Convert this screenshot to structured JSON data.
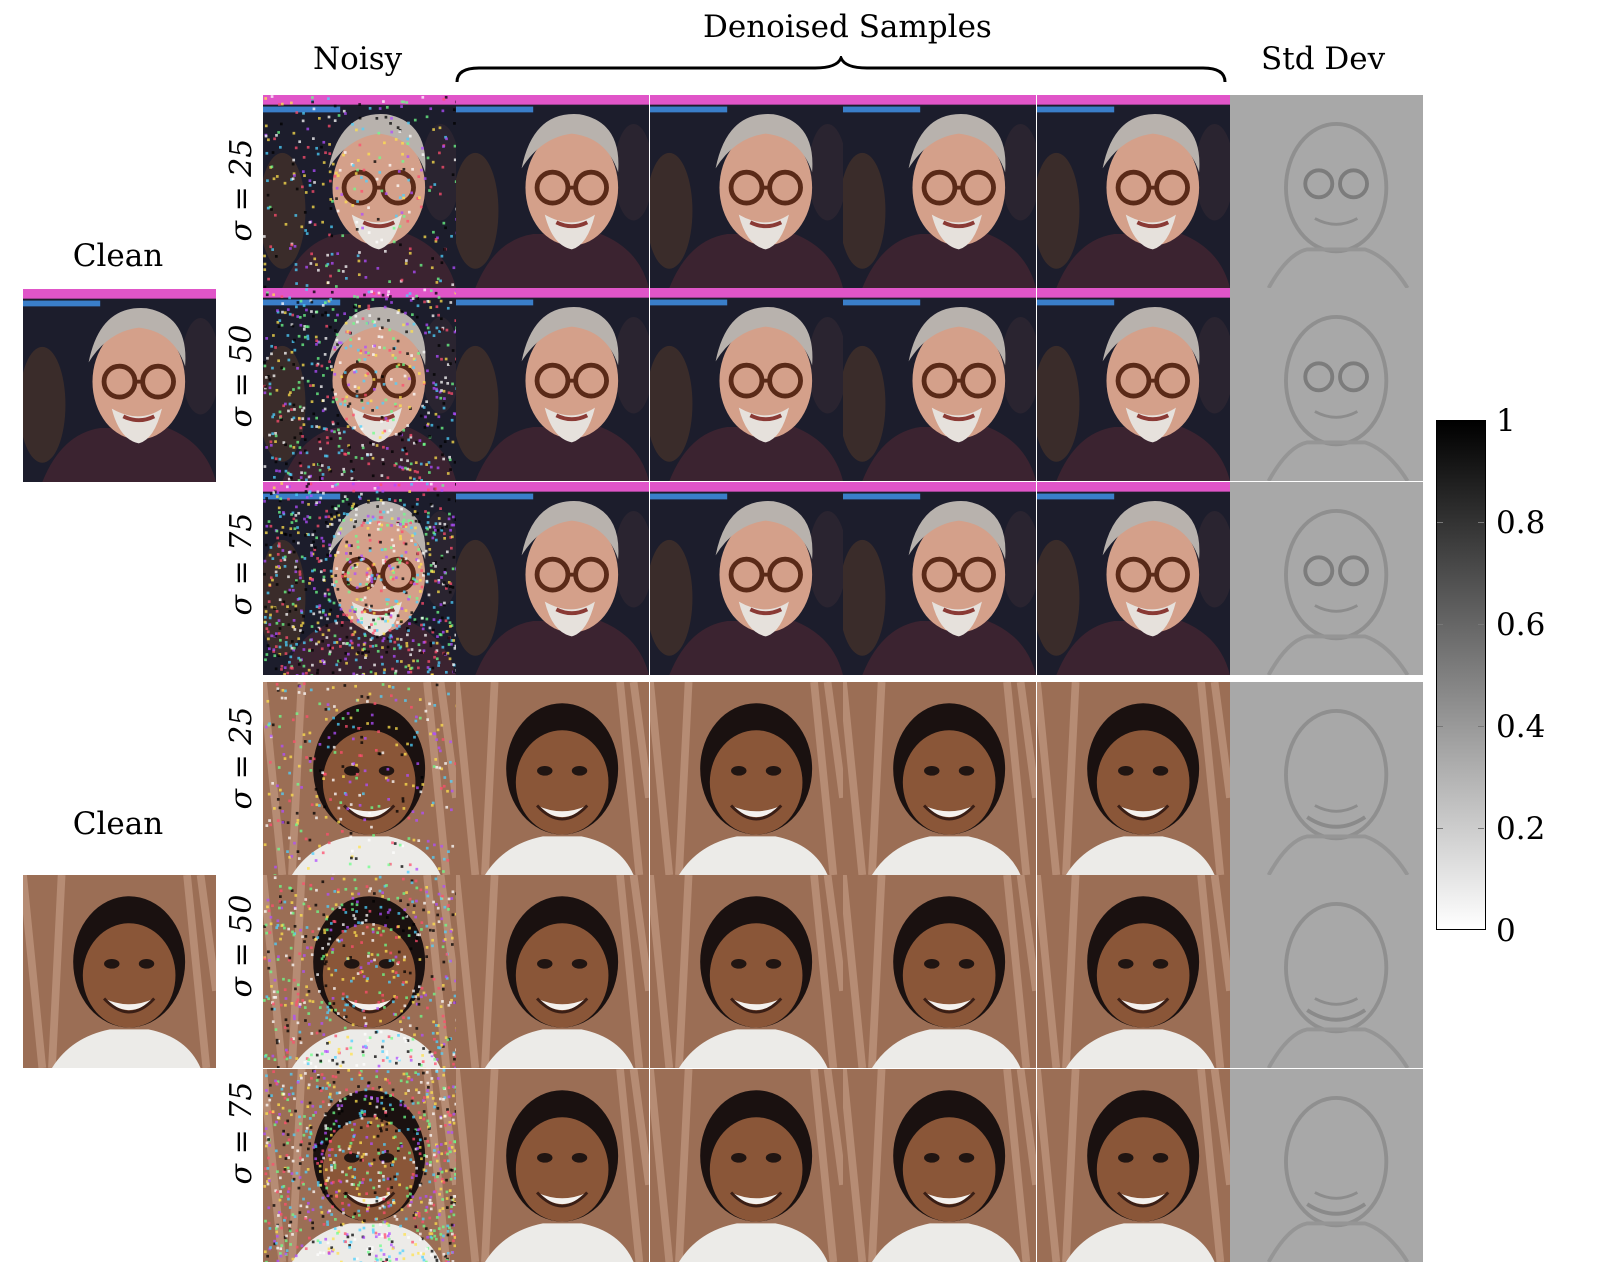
{
  "headers": {
    "noisy": "Noisy",
    "denoised": "Denoised Samples",
    "std": "Std Dev"
  },
  "groups": [
    {
      "clean_label": "Clean",
      "subject": "man-glasses-grey-hair",
      "sigmas": [
        "σ = 25",
        "σ = 50",
        "σ = 75"
      ]
    },
    {
      "clean_label": "Clean",
      "subject": "young-man-smiling",
      "sigmas": [
        "σ = 25",
        "σ = 50",
        "σ = 75"
      ]
    }
  ],
  "colorbar": {
    "ticks": [
      "1",
      "0.8",
      "0.6",
      "0.4",
      "0.2",
      "0"
    ],
    "scale": "grayscale",
    "min": 0,
    "max": 1
  }
}
